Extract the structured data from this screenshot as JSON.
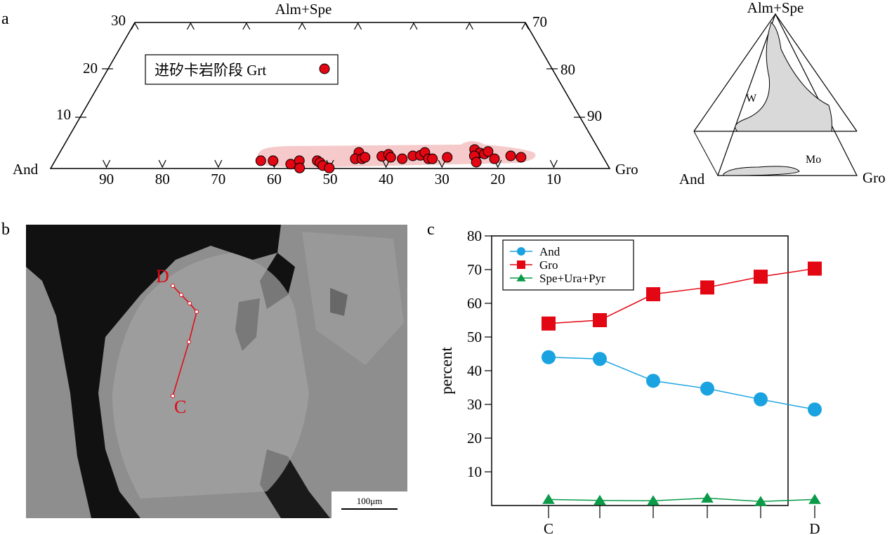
{
  "panel_labels": {
    "a": "a",
    "b": "b",
    "c": "c"
  },
  "ternary": {
    "top_label": "Alm+Spe",
    "left_label": "And",
    "right_label": "Gro",
    "bottom_ticks": [
      "90",
      "80",
      "70",
      "60",
      "50",
      "40",
      "30",
      "20",
      "10"
    ],
    "left_ticks": [
      "30",
      "20",
      "10"
    ],
    "right_ticks": [
      "70",
      "80",
      "90"
    ],
    "legend_text": "进矽卡岩阶段 Grt",
    "point_color": "#e30613",
    "field_color": "#f6caca",
    "points": [
      [
        61.6,
        1.6
      ],
      [
        59.4,
        1.6
      ],
      [
        56.6,
        0.9
      ],
      [
        54.7,
        1.6
      ],
      [
        55.4,
        0.1
      ],
      [
        51.5,
        1.6
      ],
      [
        51.2,
        1.2
      ],
      [
        51.0,
        0.6
      ],
      [
        50.1,
        0.1
      ],
      [
        43.2,
        3.3
      ],
      [
        44.5,
        2.0
      ],
      [
        43.3,
        2.0
      ],
      [
        42.6,
        2.3
      ],
      [
        39.5,
        2.5
      ],
      [
        38.1,
        2.9
      ],
      [
        38.0,
        2.3
      ],
      [
        36.1,
        2.0
      ],
      [
        33.9,
        2.6
      ],
      [
        32.5,
        2.7
      ],
      [
        31.4,
        3.3
      ],
      [
        31.4,
        2.0
      ],
      [
        30.7,
        2.0
      ],
      [
        27.9,
        2.3
      ],
      [
        22.2,
        3.9
      ],
      [
        21.6,
        3.2
      ],
      [
        22.9,
        2.6
      ],
      [
        20.9,
        3.0
      ],
      [
        20.0,
        3.5
      ],
      [
        23.2,
        1.3
      ],
      [
        19.6,
        2.0
      ],
      [
        16.4,
        2.6
      ],
      [
        14.7,
        2.3
      ]
    ]
  },
  "inset": {
    "top_label": "Alm+Spe",
    "left_label": "And",
    "right_label": "Gro",
    "field_w": "W",
    "field_mo": "Mo"
  },
  "micrograph": {
    "point_d": "D",
    "point_c": "C",
    "scale_bar": "100μm",
    "profile_color": "#e30613"
  },
  "chart_data": {
    "type": "line",
    "categories": [
      "C",
      "",
      "",
      "",
      "",
      "D"
    ],
    "ylabel": "percent",
    "ylim": [
      0,
      80
    ],
    "yticks": [
      "10",
      "20",
      "30",
      "40",
      "50",
      "60",
      "70",
      "80"
    ],
    "legend_position": "top-left",
    "series": [
      {
        "name": "And",
        "color": "#1aa3e0",
        "marker": "circle",
        "values": [
          44.0,
          43.5,
          37.0,
          34.7,
          31.5,
          28.5
        ]
      },
      {
        "name": "Gro",
        "color": "#e30613",
        "marker": "square",
        "values": [
          54.0,
          55.0,
          62.7,
          64.7,
          67.9,
          70.3
        ]
      },
      {
        "name": "Spe+Ura+Pyr",
        "color": "#0a9a48",
        "marker": "triangle",
        "values": [
          1.8,
          1.5,
          1.4,
          2.2,
          1.2,
          1.8
        ]
      }
    ]
  }
}
